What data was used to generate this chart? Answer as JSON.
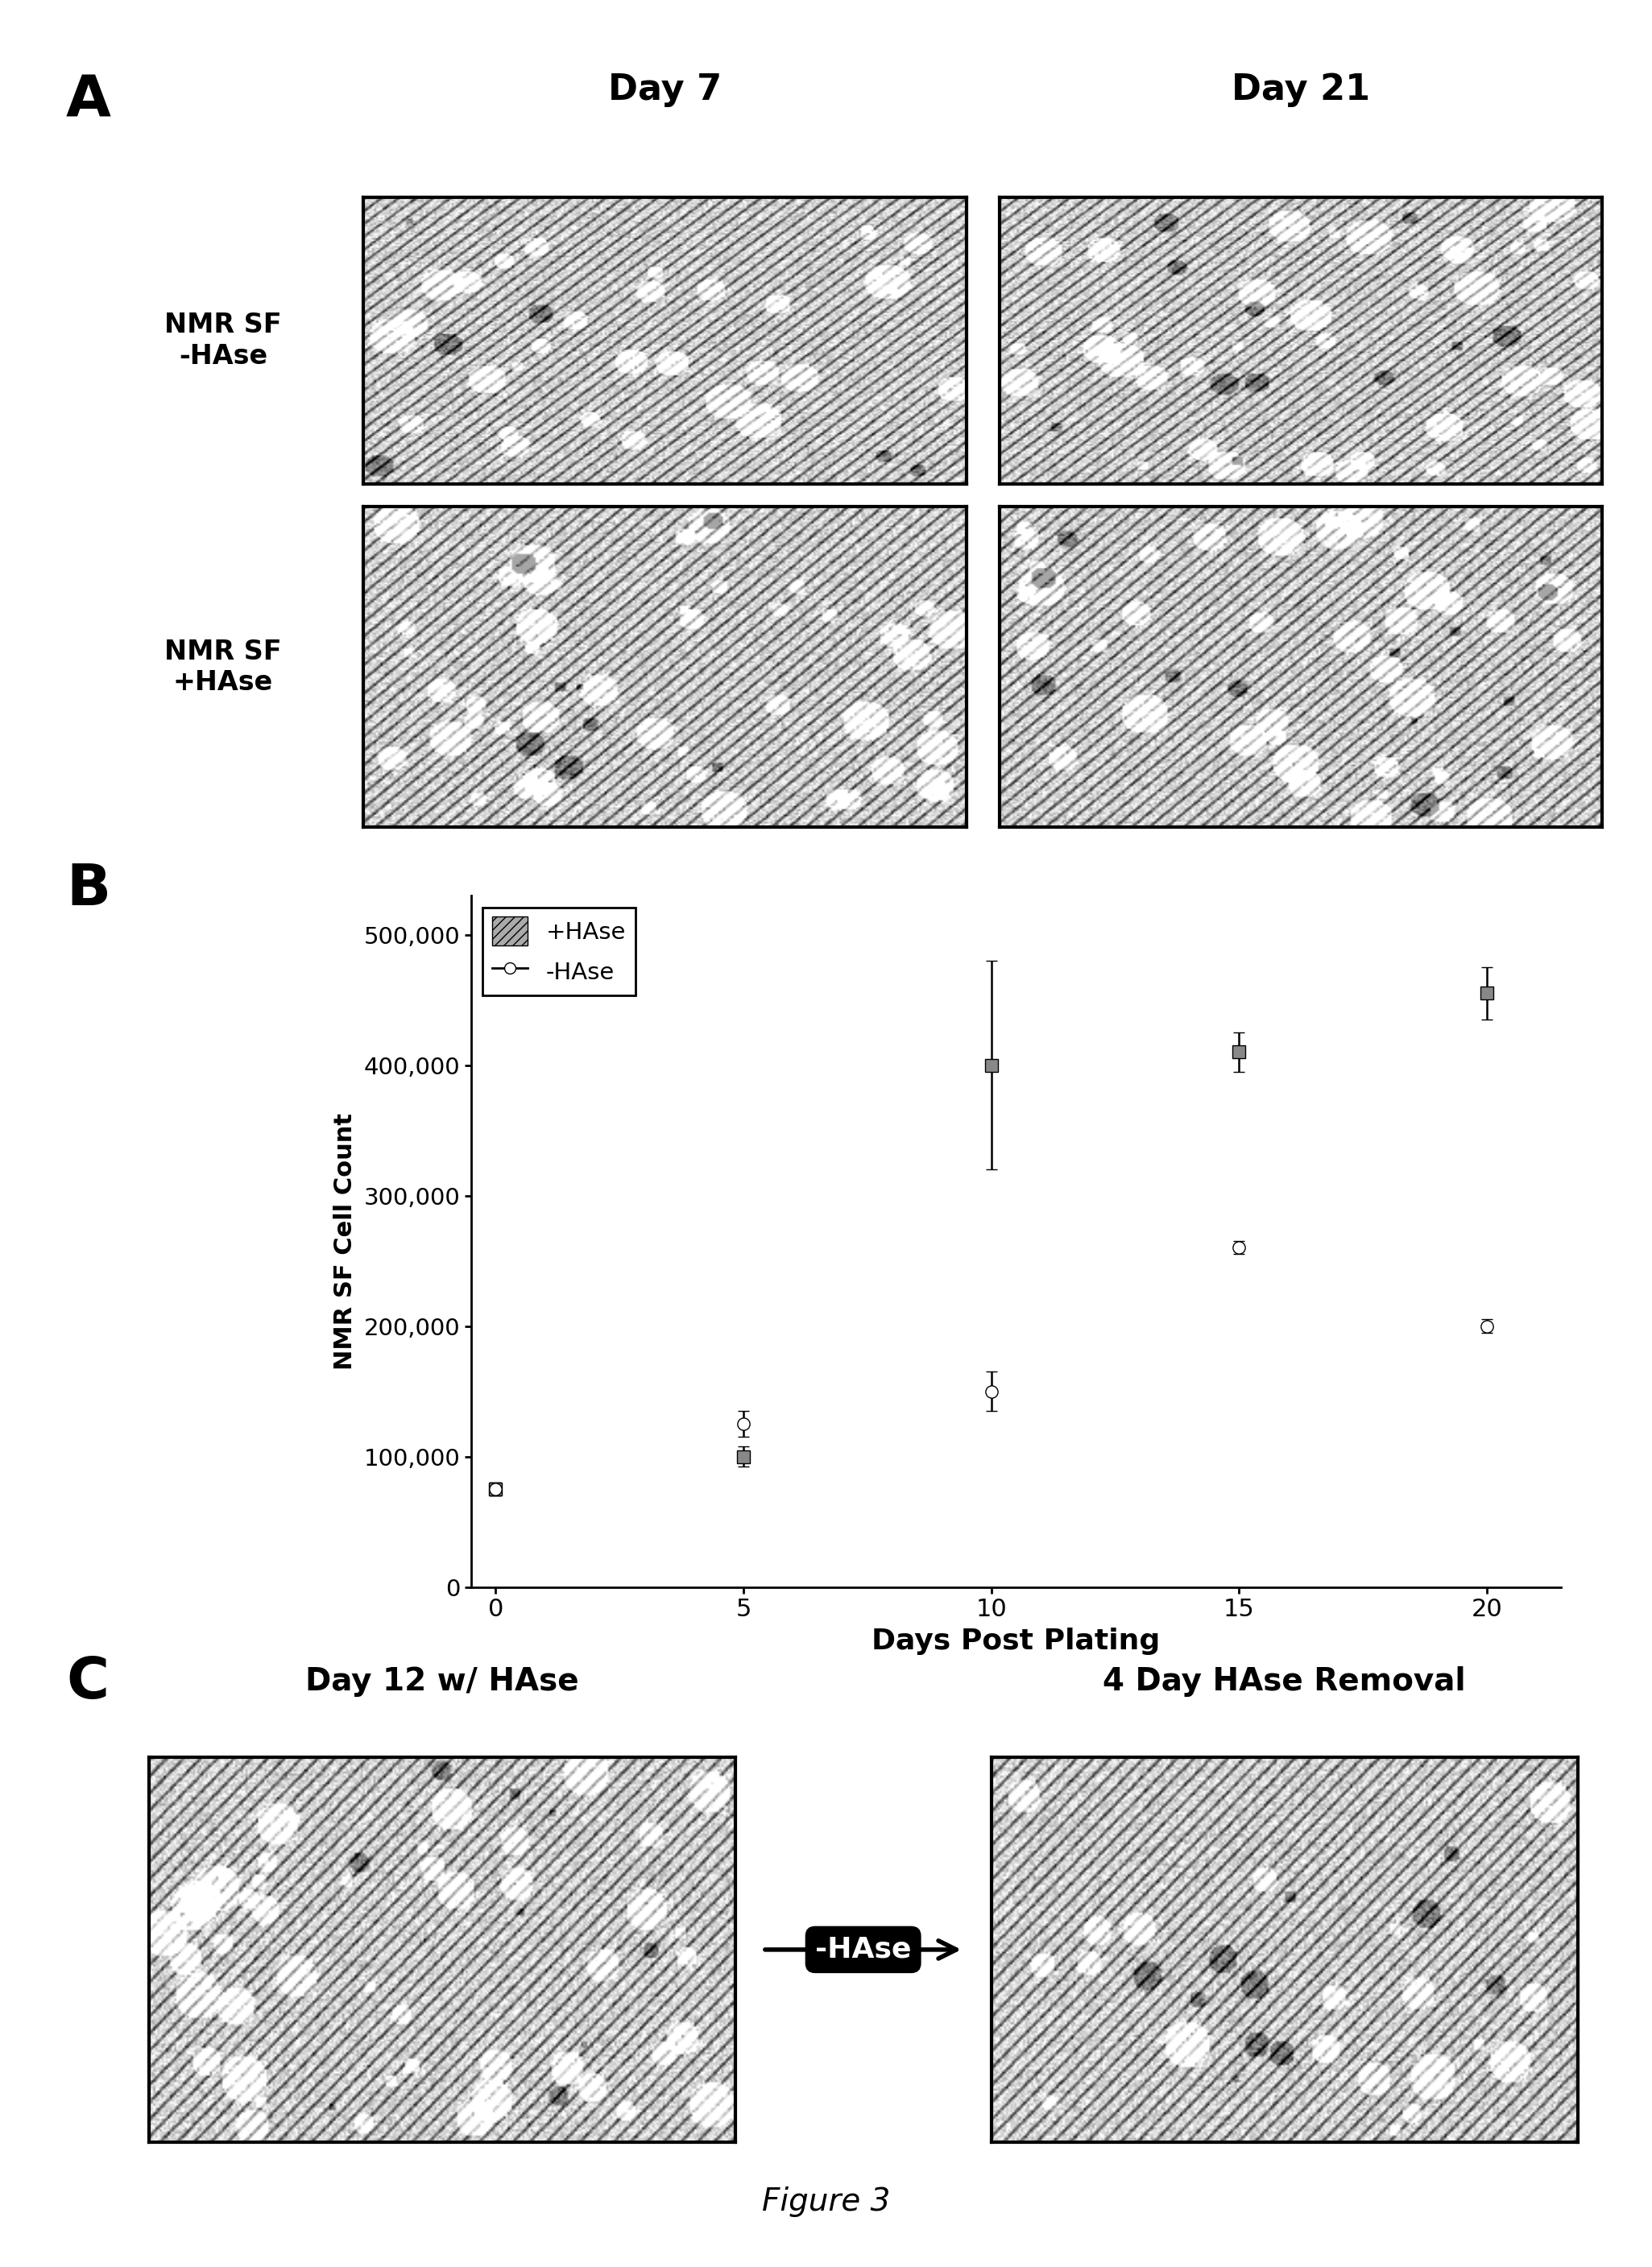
{
  "panel_A_label": "A",
  "panel_B_label": "B",
  "panel_C_label": "C",
  "row1_label1": "NMR SF\n-HAse",
  "row2_label1": "NMR SF\n+HAse",
  "col1_label": "Day 7",
  "col2_label": "Day 21",
  "c_col1_label": "Day 12 w/ HAse",
  "c_col2_label": "4 Day HAse Removal",
  "arrow_label": "-HAse",
  "xlabel": "Days Post Plating",
  "ylabel": "NMR SF Cell Count",
  "legend_plus": "+HAse",
  "legend_minus": "-HAse",
  "xdata": [
    0,
    5,
    10,
    15,
    20
  ],
  "hase_plus_y": [
    75000,
    100000,
    400000,
    410000,
    455000
  ],
  "hase_plus_yerr": [
    5000,
    8000,
    80000,
    15000,
    20000
  ],
  "hase_minus_y": [
    75000,
    125000,
    150000,
    260000,
    200000
  ],
  "hase_minus_yerr": [
    5000,
    10000,
    15000,
    5000,
    5000
  ],
  "yticks": [
    0,
    100000,
    200000,
    300000,
    400000,
    500000
  ],
  "ytick_labels": [
    "0",
    "100,000",
    "200,000",
    "300,000",
    "400,000",
    "500,000"
  ],
  "xticks": [
    0,
    5,
    10,
    15,
    20
  ],
  "ylim": [
    0,
    530000
  ],
  "xlim": [
    -0.5,
    21.5
  ],
  "figure_caption": "Figure 3",
  "bg_color": "#ffffff",
  "img_seed_A1": 101,
  "img_seed_A2": 202,
  "img_seed_A3": 303,
  "img_seed_A4": 404,
  "img_seed_C1": 505,
  "img_seed_C2": 606
}
